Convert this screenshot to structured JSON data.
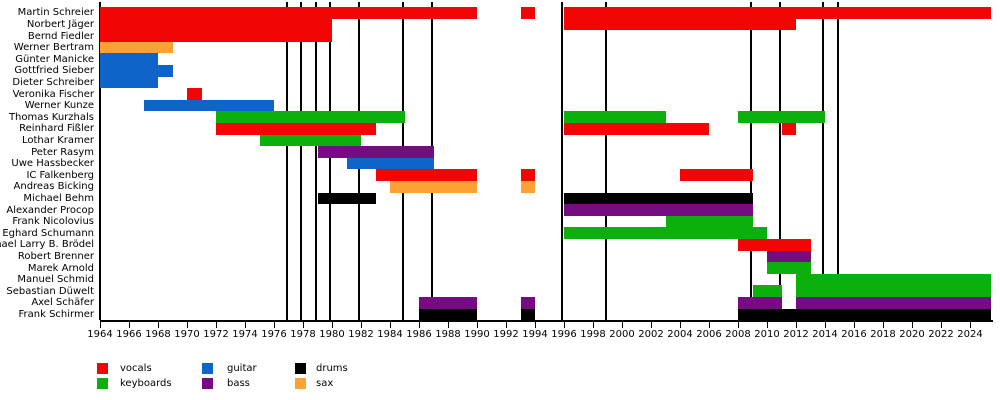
{
  "chart_data": {
    "type": "timeline",
    "description": "Band line-up timeline: colored bars show each member's tenure by instrument; vertical black lines mark album releases.",
    "x_axis": {
      "unit": "year",
      "range_start": 1964,
      "range_end": 2025.45,
      "tick_years": [
        1964,
        1966,
        1968,
        1970,
        1972,
        1974,
        1976,
        1978,
        1980,
        1982,
        1984,
        1986,
        1988,
        1990,
        1992,
        1994,
        1996,
        1998,
        2000,
        2002,
        2004,
        2006,
        2008,
        2010,
        2012,
        2014,
        2016,
        2018,
        2020,
        2022,
        2024
      ],
      "grid": false
    },
    "present_year": 2025.45,
    "instrument_colors": {
      "vocals": "#f40505",
      "keyboards": "#0cb00c",
      "guitar": "#0e64c8",
      "bass": "#750c82",
      "drums": "#000000",
      "sax": "#fca235"
    },
    "album_release_lines": [
      1977,
      1978,
      1979,
      1980,
      1982,
      1985,
      1987,
      1996,
      1999,
      2009,
      2011,
      2014,
      2015
    ],
    "members": [
      {
        "name": "Martin Schreier",
        "instrument": "vocals",
        "periods": [
          [
            1964,
            1990
          ],
          [
            1993,
            1994
          ],
          [
            1996,
            "present"
          ]
        ]
      },
      {
        "name": "Norbert Jäger",
        "instrument": "vocals",
        "periods": [
          [
            1964,
            1980
          ],
          [
            1996,
            2012
          ]
        ]
      },
      {
        "name": "Bernd Fiedler",
        "instrument": "vocals",
        "periods": [
          [
            1964,
            1980
          ]
        ]
      },
      {
        "name": "Werner Bertram",
        "instrument": "sax",
        "periods": [
          [
            1964,
            1969
          ]
        ]
      },
      {
        "name": "Günter Manicke",
        "instrument": "guitar",
        "periods": [
          [
            1964,
            1968
          ]
        ]
      },
      {
        "name": "Gottfried Sieber",
        "instrument": "guitar",
        "periods": [
          [
            1964,
            1969
          ]
        ]
      },
      {
        "name": "Dieter Schreiber",
        "instrument": "guitar",
        "periods": [
          [
            1964,
            1968
          ]
        ]
      },
      {
        "name": "Veronika Fischer",
        "instrument": "vocals",
        "periods": [
          [
            1970,
            1971
          ]
        ]
      },
      {
        "name": "Werner Kunze",
        "instrument": "guitar",
        "periods": [
          [
            1967,
            1976
          ]
        ]
      },
      {
        "name": "Thomas Kurzhals",
        "instrument": "keyboards",
        "periods": [
          [
            1972,
            1985
          ],
          [
            1996,
            2003
          ],
          [
            2008,
            2014
          ]
        ]
      },
      {
        "name": "Reinhard Fißler",
        "instrument": "vocals",
        "periods": [
          [
            1972,
            1983
          ],
          [
            1996,
            2006
          ],
          [
            2011,
            2012
          ]
        ]
      },
      {
        "name": "Lothar Kramer",
        "instrument": "keyboards",
        "periods": [
          [
            1975,
            1982
          ]
        ]
      },
      {
        "name": "Peter Rasym",
        "instrument": "bass",
        "periods": [
          [
            1979,
            1987
          ]
        ]
      },
      {
        "name": "Uwe Hassbecker",
        "instrument": "guitar",
        "periods": [
          [
            1981,
            1987
          ]
        ]
      },
      {
        "name": "IC Falkenberg",
        "instrument": "vocals",
        "periods": [
          [
            1983,
            1990
          ],
          [
            1993,
            1994
          ],
          [
            2004,
            2009
          ]
        ]
      },
      {
        "name": "Andreas Bicking",
        "instrument": "sax",
        "periods": [
          [
            1984,
            1990
          ],
          [
            1993,
            1994
          ]
        ]
      },
      {
        "name": "Michael Behm",
        "instrument": "drums",
        "periods": [
          [
            1979,
            1983
          ],
          [
            1996,
            2009
          ]
        ]
      },
      {
        "name": "Alexander Procop",
        "instrument": "bass",
        "periods": [
          [
            1996,
            2009
          ]
        ]
      },
      {
        "name": "Frank Nicolovius",
        "instrument": "keyboards",
        "periods": [
          [
            2003,
            2009
          ]
        ]
      },
      {
        "name": "Eghard Schumann",
        "instrument": "keyboards",
        "periods": [
          [
            1996,
            2010
          ]
        ]
      },
      {
        "name": "Michael Larry B. Brödel",
        "instrument": "vocals",
        "periods": [
          [
            2008,
            2013
          ]
        ]
      },
      {
        "name": "Robert Brenner",
        "instrument": "bass",
        "periods": [
          [
            2010,
            2013
          ]
        ]
      },
      {
        "name": "Marek Arnold",
        "instrument": "keyboards",
        "periods": [
          [
            2010,
            2013
          ]
        ]
      },
      {
        "name": "Manuel Schmid",
        "instrument": "keyboards",
        "periods": [
          [
            2012,
            "present"
          ]
        ]
      },
      {
        "name": "Sebastian Düwelt",
        "instrument": "keyboards",
        "periods": [
          [
            2009,
            2011
          ],
          [
            2012,
            "present"
          ]
        ]
      },
      {
        "name": "Axel Schäfer",
        "instrument": "bass",
        "periods": [
          [
            1986,
            1990
          ],
          [
            1993,
            1994
          ],
          [
            2008,
            2011
          ],
          [
            2012,
            "present"
          ]
        ]
      },
      {
        "name": "Frank Schirmer",
        "instrument": "drums",
        "periods": [
          [
            1986,
            1990
          ],
          [
            1993,
            1994
          ],
          [
            2008,
            "present"
          ]
        ]
      }
    ],
    "legend": {
      "position": "bottom-left",
      "entries": [
        {
          "label": "vocals",
          "instrument": "vocals"
        },
        {
          "label": "keyboards",
          "instrument": "keyboards"
        },
        {
          "label": "guitar",
          "instrument": "guitar"
        },
        {
          "label": "bass",
          "instrument": "bass"
        },
        {
          "label": "drums",
          "instrument": "drums"
        },
        {
          "label": "sax",
          "instrument": "sax"
        }
      ]
    }
  }
}
